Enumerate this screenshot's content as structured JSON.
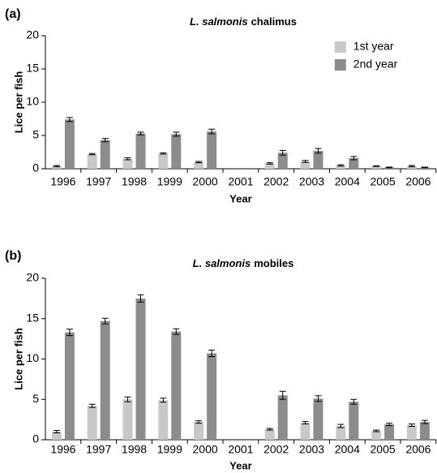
{
  "chart_data": [
    {
      "type": "bar",
      "panel": "(a)",
      "title": [
        "L. salmonis",
        "chalimus"
      ],
      "xlabel": "Year",
      "ylabel": "Lice per fish",
      "categories": [
        "1996",
        "1997",
        "1998",
        "1999",
        "2000",
        "2001",
        "2002",
        "2003",
        "2004",
        "2005",
        "2006"
      ],
      "series": [
        {
          "name": "1st year",
          "color": "#c8c8c8",
          "values": [
            0.4,
            2.2,
            1.5,
            2.3,
            1.0,
            null,
            0.8,
            1.1,
            0.5,
            0.4,
            0.4
          ],
          "errors": [
            0.1,
            0.1,
            0.15,
            0.1,
            0.1,
            null,
            0.1,
            0.15,
            0.1,
            0.05,
            0.1
          ]
        },
        {
          "name": "2nd year",
          "color": "#8c8c8c",
          "values": [
            7.4,
            4.3,
            5.3,
            5.2,
            5.6,
            null,
            2.4,
            2.7,
            1.6,
            0.2,
            0.2
          ],
          "errors": [
            0.3,
            0.25,
            0.2,
            0.3,
            0.35,
            null,
            0.35,
            0.35,
            0.25,
            0.05,
            0.05
          ]
        }
      ],
      "ylim": [
        0,
        20
      ],
      "yticks": [
        0,
        5,
        10,
        15,
        20
      ],
      "legend": "upper right"
    },
    {
      "type": "bar",
      "panel": "(b)",
      "title": [
        "L. salmonis",
        "mobiles"
      ],
      "xlabel": "Year",
      "ylabel": "Lice per fish",
      "categories": [
        "1996",
        "1997",
        "1998",
        "1999",
        "2000",
        "2001",
        "2002",
        "2003",
        "2004",
        "2005",
        "2006"
      ],
      "series": [
        {
          "color": "#c8c8c8",
          "values": [
            1.0,
            4.2,
            5.0,
            4.9,
            2.2,
            null,
            1.3,
            2.1,
            1.7,
            1.1,
            1.8
          ],
          "errors": [
            0.15,
            0.2,
            0.3,
            0.25,
            0.15,
            null,
            0.1,
            0.15,
            0.2,
            0.1,
            0.15
          ]
        },
        {
          "color": "#8c8c8c",
          "values": [
            13.3,
            14.7,
            17.5,
            13.4,
            10.7,
            null,
            5.5,
            5.1,
            4.7,
            1.9,
            2.2
          ],
          "errors": [
            0.4,
            0.35,
            0.45,
            0.35,
            0.4,
            null,
            0.5,
            0.35,
            0.3,
            0.15,
            0.2
          ]
        }
      ],
      "ylim": [
        0,
        20
      ],
      "yticks": [
        0,
        5,
        10,
        15,
        20
      ]
    }
  ]
}
